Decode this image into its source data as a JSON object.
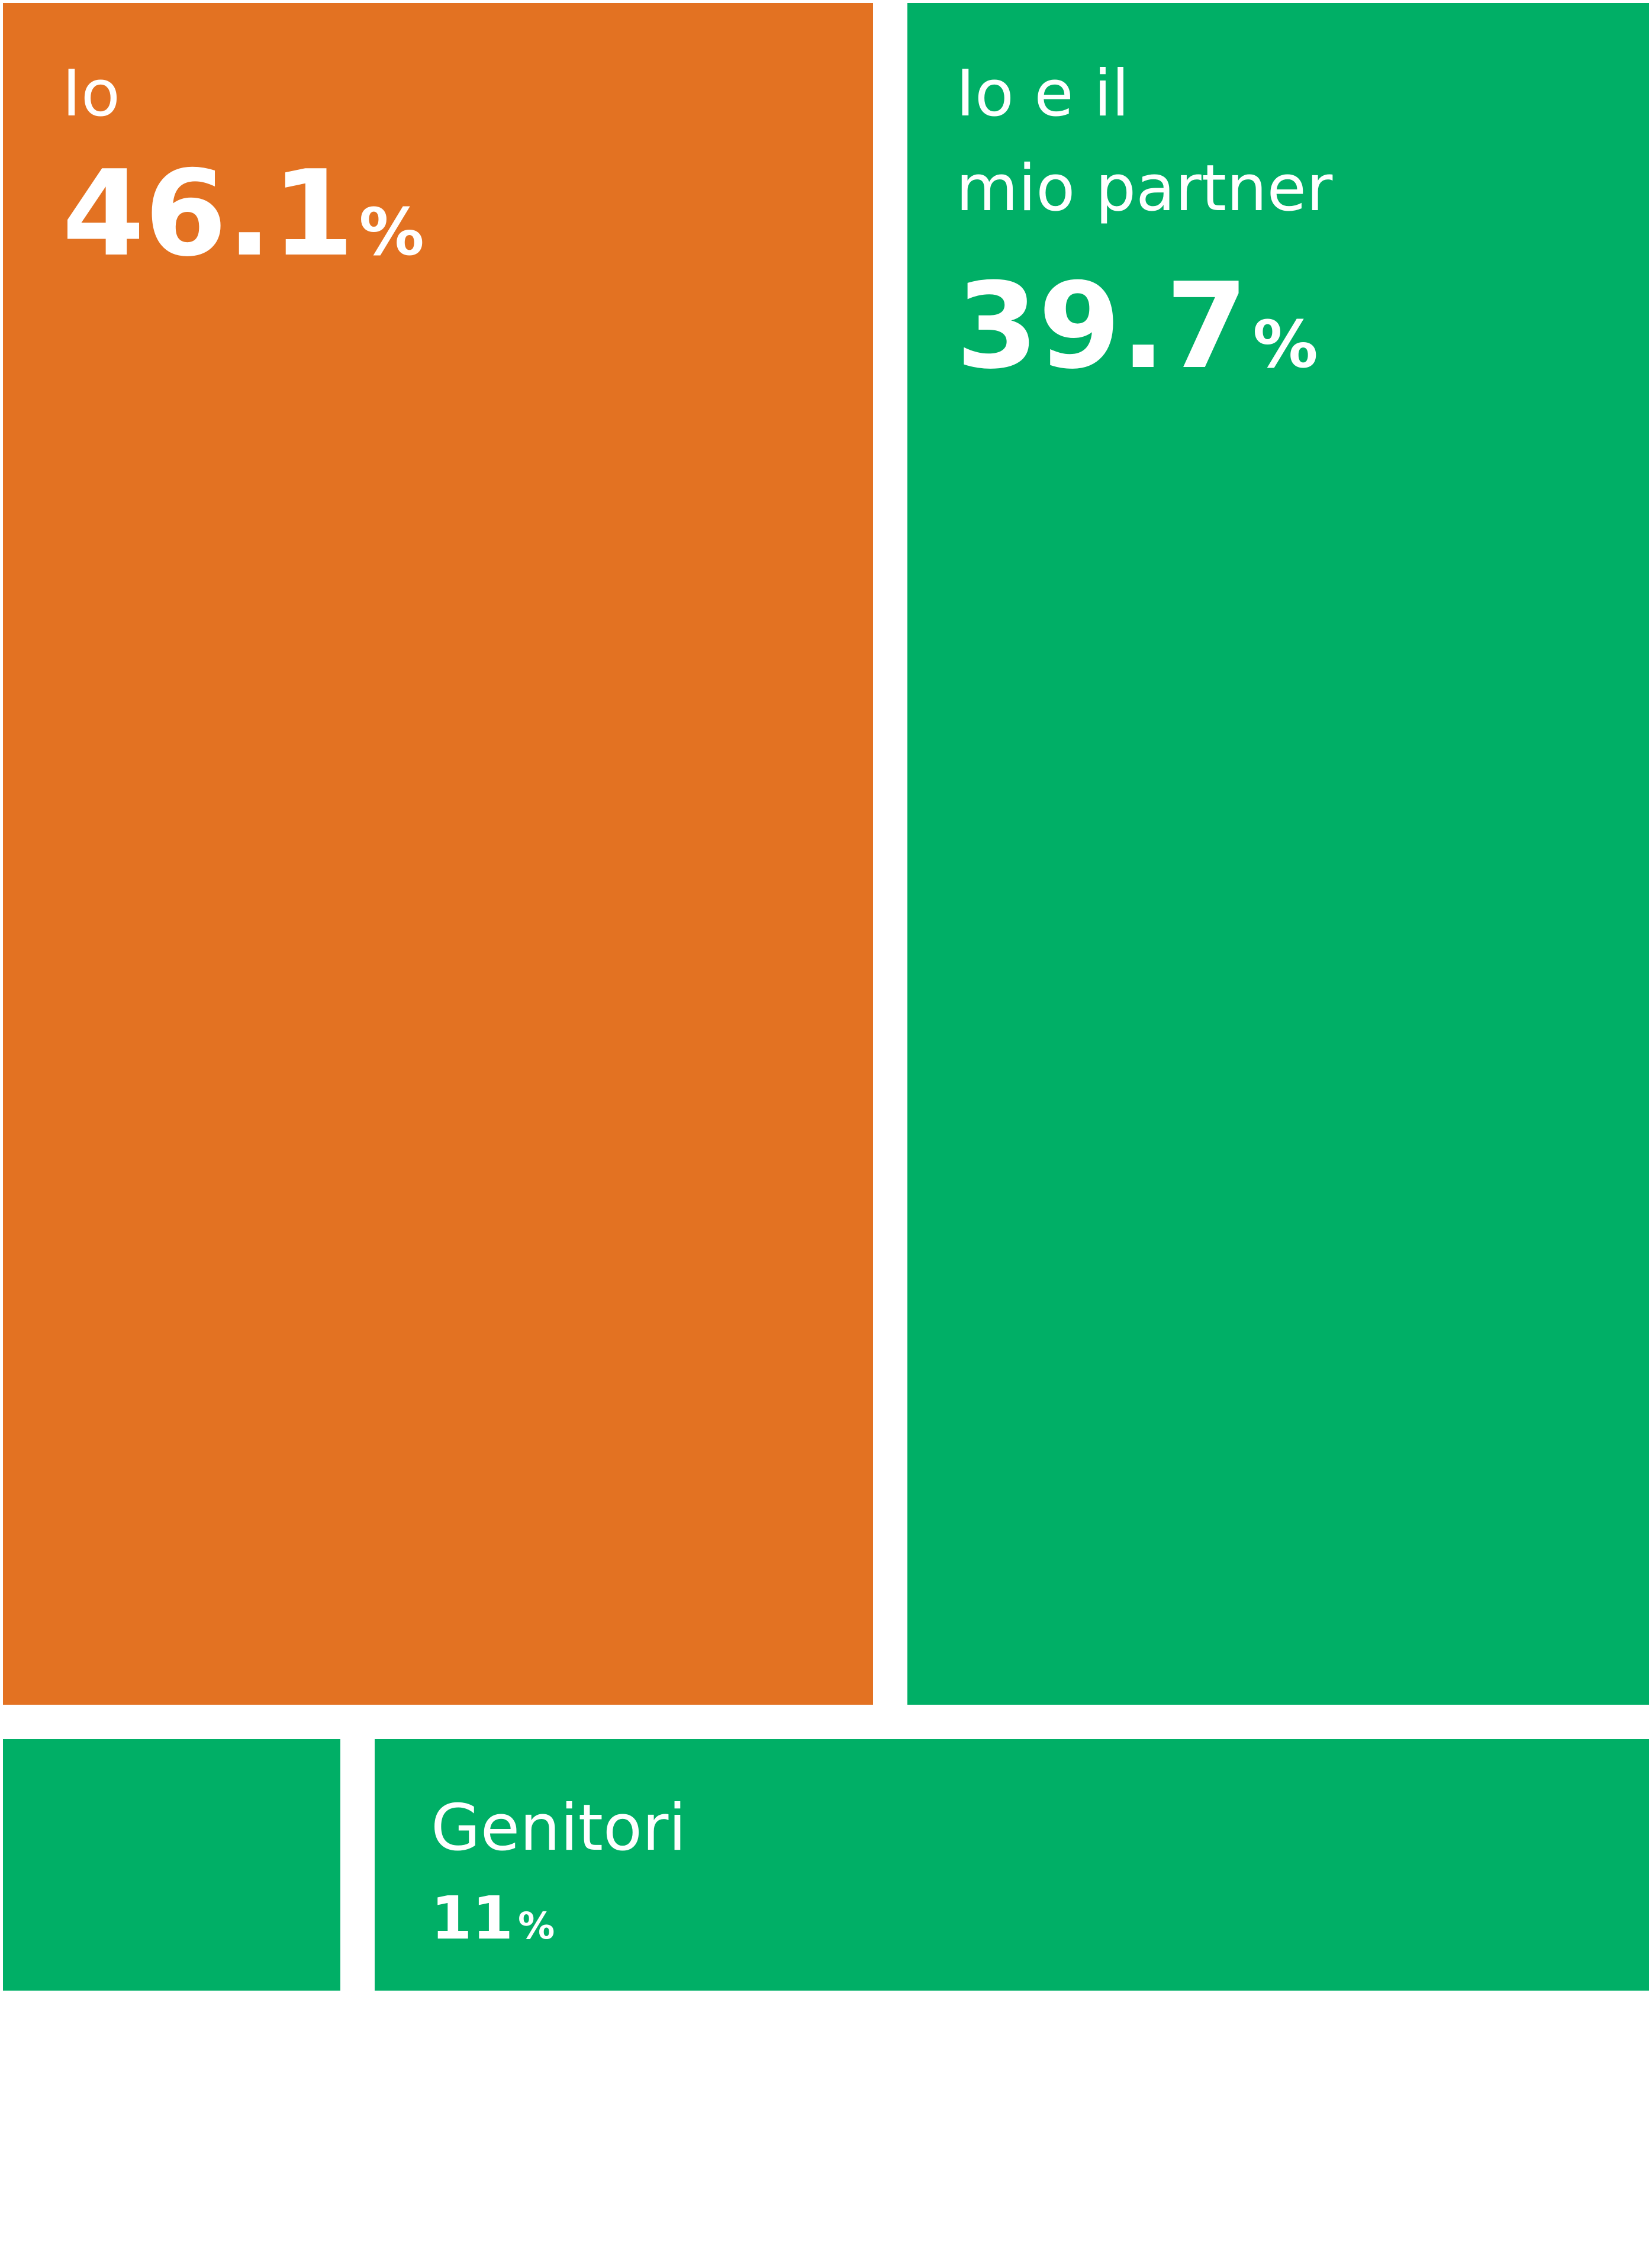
{
  "chart_data": {
    "type": "treemap",
    "colors": {
      "orange": "#E37222",
      "green": "#00AF66"
    },
    "tiles": [
      {
        "label_lines": [
          "Io"
        ],
        "value": 46.1,
        "value_text": "46.1",
        "unit": "%",
        "color": "#E37222"
      },
      {
        "label_lines": [
          "Io e il",
          "mio partner"
        ],
        "value": 39.7,
        "value_text": "39.7",
        "unit": "%",
        "color": "#00AF66"
      },
      {
        "label_lines": [],
        "value": 3.2,
        "value_text": "",
        "unit": "",
        "color": "#00AF66"
      },
      {
        "label_lines": [
          "Genitori"
        ],
        "value": 11,
        "value_text": "11",
        "unit": "%",
        "color": "#00AF66"
      }
    ]
  }
}
